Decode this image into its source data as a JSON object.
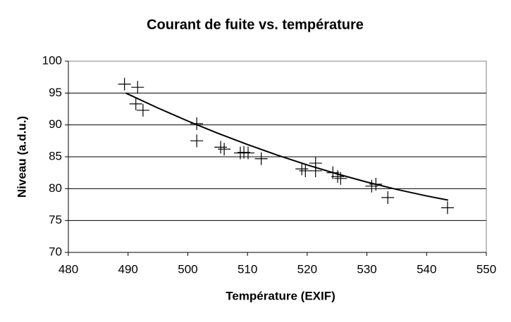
{
  "chart_data": {
    "type": "scatter",
    "title": "Courant de fuite vs. température",
    "x_label": "Température (EXIF)",
    "y_label": "Niveau (a.d.u.)",
    "xlim": [
      480,
      550
    ],
    "xticks": [
      480,
      490,
      500,
      510,
      520,
      530,
      540,
      550
    ],
    "ylim": [
      70,
      100
    ],
    "yticks": [
      70,
      75,
      80,
      85,
      90,
      95,
      100
    ],
    "grid": true,
    "series": [
      {
        "color": "#000000",
        "marker": "plus",
        "x": [
          489.4,
          491.6,
          491.3,
          492.5,
          501.5,
          501.5,
          505.5,
          506.1,
          508.8,
          509.4,
          510.1,
          512.3,
          519.1,
          519.7,
          521.4,
          521.4,
          524.3,
          525.1,
          525.6,
          530.8,
          531.5,
          533.5,
          543.5
        ],
        "values": [
          96.4,
          95.9,
          93.3,
          92.3,
          90.2,
          87.5,
          86.5,
          86.2,
          85.6,
          85.7,
          85.6,
          84.7,
          83.1,
          82.8,
          84.0,
          82.8,
          82.5,
          81.9,
          81.6,
          80.4,
          80.7,
          78.6,
          77.0
        ]
      },
      {
        "color": "#000000",
        "marker": "line",
        "x": [
          489.6,
          495,
          500,
          505,
          510,
          515,
          520,
          525,
          530,
          535,
          540,
          543.6
        ],
        "values": [
          95.0,
          92.65,
          90.61,
          88.7,
          86.92,
          85.26,
          83.72,
          82.31,
          81.03,
          79.88,
          78.86,
          78.2
        ]
      }
    ]
  }
}
